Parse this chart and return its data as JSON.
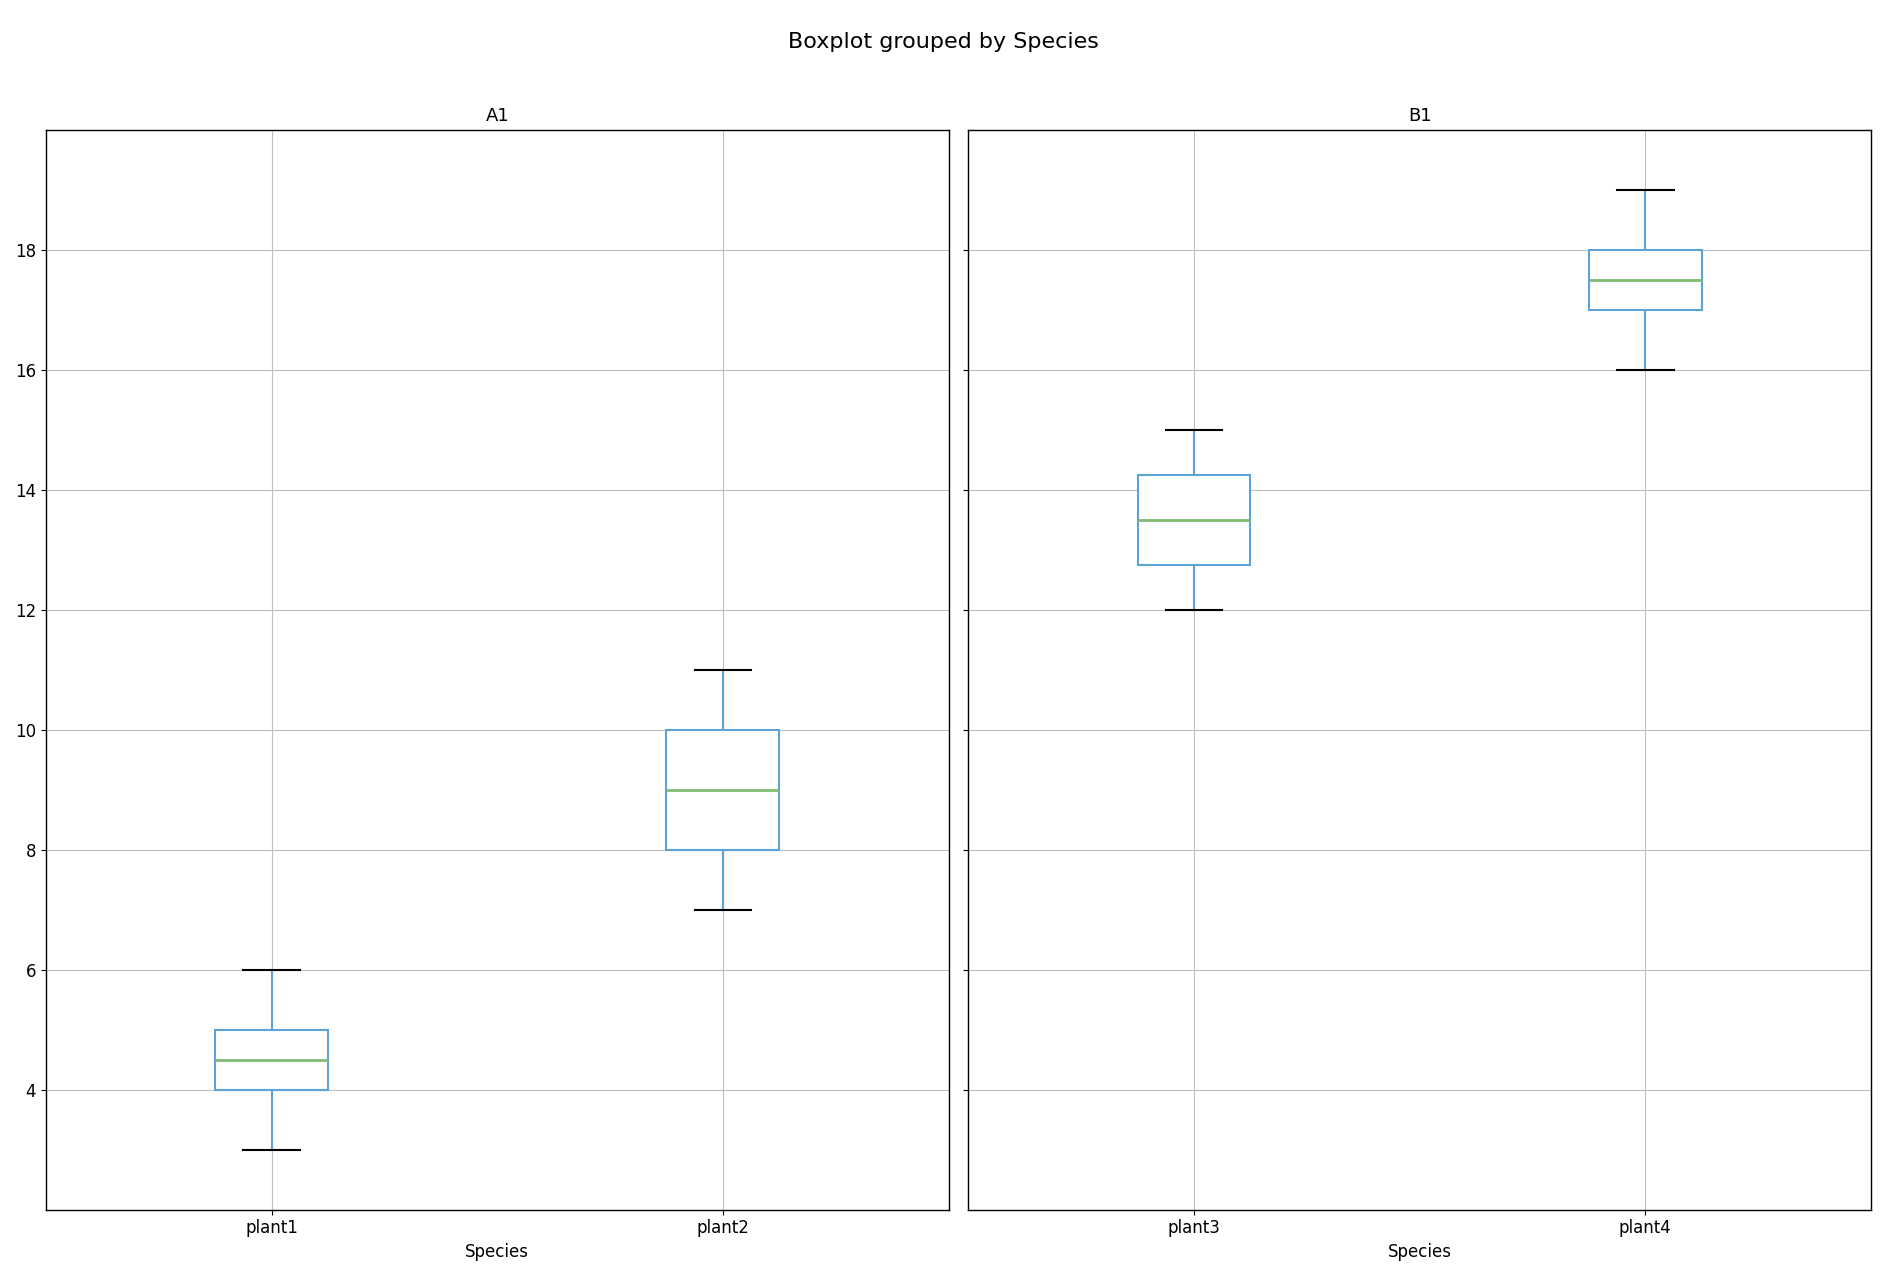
{
  "title": "Boxplot grouped by Species",
  "subplot_titles": [
    "A1",
    "B1"
  ],
  "xlabel": "Species",
  "groups": {
    "A1": {
      "plant1": {
        "whislo": 3.0,
        "q1": 4.0,
        "med": 4.5,
        "q3": 5.0,
        "whishi": 6.0
      },
      "plant2": {
        "whislo": 7.0,
        "q1": 8.0,
        "med": 9.0,
        "q3": 10.0,
        "whishi": 11.0
      }
    },
    "B1": {
      "plant3": {
        "whislo": 12.0,
        "q1": 12.75,
        "med": 13.5,
        "q3": 14.25,
        "whishi": 15.0
      },
      "plant4": {
        "whislo": 16.0,
        "q1": 17.0,
        "med": 17.5,
        "q3": 18.0,
        "whishi": 19.0
      }
    }
  },
  "box_color": "#5ba3d9",
  "median_color": "#7fbc72",
  "whisker_color": "#5ba3d9",
  "cap_color": "#000000",
  "background_color": "#ffffff",
  "grid_color": "#c0c0c0",
  "ylim": [
    2.0,
    20.0
  ],
  "yticks": [
    4,
    6,
    8,
    10,
    12,
    14,
    16,
    18
  ],
  "title_fontsize": 16,
  "axis_title_fontsize": 13,
  "tick_fontsize": 12,
  "box_width": 0.25
}
